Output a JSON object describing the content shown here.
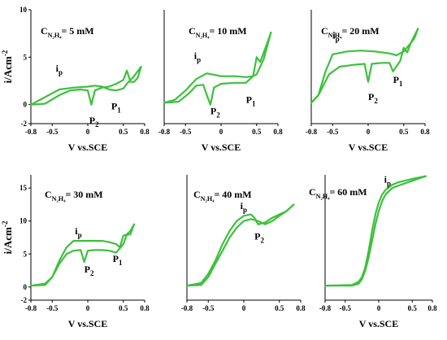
{
  "chart_data": [
    {
      "type": "line",
      "title": "C_{N2H4}= 5 mM",
      "title_main": "C",
      "title_sub": "N₂H₄",
      "title_rest": "= 5 mM",
      "xlabel": "V vs.SCE",
      "ylabel": "i/Acm",
      "ylabel_sup": "-2",
      "xlim": [
        -0.8,
        0.8
      ],
      "ylim": [
        -2,
        10
      ],
      "xticks": [
        "-0.8",
        "-0.5",
        "0",
        "0.5",
        "0.8"
      ],
      "yticks": [
        "10",
        "5",
        "0",
        "-2"
      ],
      "annotations": [
        {
          "text": "i",
          "sub": "p",
          "x": -0.45,
          "y": 3.5
        },
        {
          "text": "P",
          "sub": "2",
          "x": 0.02,
          "y": -2.0
        },
        {
          "text": "P",
          "sub": "1",
          "x": 0.33,
          "y": -0.5
        }
      ],
      "series": [
        {
          "x": [
            -0.8,
            -0.6,
            -0.4,
            -0.25,
            -0.1,
            0.0,
            0.05,
            0.1,
            0.2,
            0.3,
            0.4,
            0.5,
            0.55,
            0.6,
            0.65,
            0.7,
            0.75
          ],
          "y": [
            0.0,
            0.1,
            1.0,
            1.5,
            1.6,
            1.5,
            0.0,
            1.5,
            1.8,
            1.9,
            2.2,
            2.6,
            3.6,
            2.4,
            2.4,
            2.8,
            4.0
          ]
        },
        {
          "x": [
            0.75,
            0.65,
            0.55,
            0.5,
            0.4,
            0.3,
            0.2,
            0.1,
            0.0,
            -0.2,
            -0.4,
            -0.55,
            -0.8
          ],
          "y": [
            4.0,
            3.0,
            2.2,
            1.7,
            1.5,
            1.6,
            1.9,
            2.0,
            1.9,
            1.8,
            1.6,
            1.0,
            0.0
          ]
        }
      ]
    },
    {
      "type": "line",
      "title": "C_{N2H4}= 10 mM",
      "title_main": "C",
      "title_sub": "N₂H₄",
      "title_rest": "= 10 mM",
      "xlabel": "V vs.SCE",
      "ylabel": "",
      "xlim": [
        -0.8,
        0.8
      ],
      "ylim": [
        -2,
        10
      ],
      "xticks": [
        "-0.8",
        "-0.5",
        "0",
        "0.5",
        "0.8"
      ],
      "yticks": [],
      "annotations": [
        {
          "text": "i",
          "sub": "p",
          "x": -0.38,
          "y": 4.8
        },
        {
          "text": "P",
          "sub": "2",
          "x": -0.15,
          "y": -1.0
        },
        {
          "text": "P",
          "sub": "1",
          "x": 0.35,
          "y": 0.2
        }
      ],
      "series": [
        {
          "x": [
            -0.8,
            -0.6,
            -0.45,
            -0.35,
            -0.25,
            -0.2,
            -0.15,
            -0.1,
            0.0,
            0.2,
            0.35,
            0.45,
            0.5,
            0.55,
            0.6,
            0.65,
            0.7
          ],
          "y": [
            0.2,
            0.3,
            1.2,
            2.0,
            2.1,
            1.0,
            0.0,
            1.8,
            2.2,
            2.3,
            2.3,
            3.0,
            5.0,
            4.5,
            5.5,
            6.5,
            7.6
          ]
        },
        {
          "x": [
            0.7,
            0.6,
            0.5,
            0.45,
            0.35,
            0.2,
            0.0,
            -0.2,
            -0.35,
            -0.5,
            -0.65,
            -0.8
          ],
          "y": [
            7.6,
            4.8,
            3.2,
            3.0,
            2.9,
            3.0,
            3.0,
            3.3,
            2.7,
            1.5,
            0.5,
            0.2
          ]
        }
      ]
    },
    {
      "type": "line",
      "title": "C_{N2H4}= 20 mM",
      "title_main": "C",
      "title_sub": "N₂H₄",
      "title_rest": "= 20 mM",
      "xlabel": "V vs.SCE",
      "ylabel": "",
      "xlim": [
        -0.8,
        0.8
      ],
      "ylim": [
        -2,
        10
      ],
      "xticks": [
        "-0.8",
        "-0.5",
        "0",
        "0.5",
        "0.8"
      ],
      "yticks": [],
      "annotations": [
        {
          "text": "i",
          "sub": "p",
          "x": -0.5,
          "y": 7.0
        },
        {
          "text": "P",
          "sub": "2",
          "x": 0.0,
          "y": 0.5
        },
        {
          "text": "P",
          "sub": "1",
          "x": 0.35,
          "y": 2.3
        }
      ],
      "series": [
        {
          "x": [
            -0.8,
            -0.7,
            -0.55,
            -0.4,
            -0.2,
            -0.05,
            0.0,
            0.05,
            0.2,
            0.3,
            0.35,
            0.45,
            0.5,
            0.55,
            0.6,
            0.65,
            0.7
          ],
          "y": [
            0.2,
            1.0,
            3.2,
            4.0,
            4.2,
            4.3,
            2.4,
            4.3,
            4.4,
            4.4,
            3.5,
            4.6,
            6.0,
            5.5,
            6.5,
            7.0,
            8.0
          ]
        },
        {
          "x": [
            0.7,
            0.6,
            0.5,
            0.4,
            0.3,
            0.1,
            -0.1,
            -0.3,
            -0.5,
            -0.6,
            -0.7,
            -0.8
          ],
          "y": [
            8.0,
            6.5,
            5.6,
            5.2,
            5.4,
            5.6,
            5.7,
            5.6,
            5.3,
            3.5,
            1.0,
            0.2
          ]
        }
      ]
    },
    {
      "type": "line",
      "title": "C_{N2H4}= 30 mM",
      "title_main": "C",
      "title_sub": "N₂H₄",
      "title_rest": "= 30 mM",
      "xlabel": "V vs.SCE",
      "ylabel": "i/Acm",
      "ylabel_sup": "-2",
      "xlim": [
        -0.8,
        0.8
      ],
      "ylim": [
        -2,
        17
      ],
      "xticks": [
        "-0.8",
        "-0.5",
        "0",
        "0.5",
        "0.8"
      ],
      "yticks": [
        "15",
        "10",
        "5",
        "0",
        "-2"
      ],
      "annotations": [
        {
          "text": "i",
          "sub": "p",
          "x": -0.18,
          "y": 8.0
        },
        {
          "text": "P",
          "sub": "2",
          "x": -0.05,
          "y": 2.2
        },
        {
          "text": "P",
          "sub": "1",
          "x": 0.35,
          "y": 3.8
        }
      ],
      "series": [
        {
          "x": [
            -0.8,
            -0.6,
            -0.5,
            -0.4,
            -0.3,
            -0.2,
            -0.1,
            -0.05,
            0.0,
            0.1,
            0.2,
            0.3,
            0.4,
            0.5,
            0.55,
            0.6,
            0.65
          ],
          "y": [
            0.2,
            0.3,
            1.5,
            3.5,
            5.0,
            5.5,
            5.6,
            3.8,
            5.5,
            5.6,
            5.6,
            5.5,
            5.2,
            6.5,
            8.0,
            8.5,
            9.5
          ]
        },
        {
          "x": [
            0.65,
            0.6,
            0.5,
            0.45,
            0.4,
            0.3,
            0.2,
            0.0,
            -0.2,
            -0.3,
            -0.4,
            -0.5,
            -0.6,
            -0.8
          ],
          "y": [
            9.5,
            8.0,
            7.8,
            6.0,
            6.5,
            6.8,
            7.0,
            7.0,
            7.0,
            6.0,
            4.0,
            1.5,
            0.5,
            0.2
          ]
        }
      ]
    },
    {
      "type": "line",
      "title": "C_{N2H4}= 40 mM",
      "title_main": "C",
      "title_sub": "N₂H₄",
      "title_rest": "= 40 mM",
      "xlabel": "",
      "ylabel": "",
      "xlim": [
        -0.8,
        0.8
      ],
      "ylim": [
        -2,
        17
      ],
      "xticks": [
        "-0.8",
        "-0.5",
        "0",
        "0.5",
        "0.8"
      ],
      "yticks": [],
      "annotations": [
        {
          "text": "i",
          "sub": "p",
          "x": -0.05,
          "y": 11.8
        },
        {
          "text": "P",
          "sub": "2",
          "x": 0.15,
          "y": 7.2
        }
      ],
      "series": [
        {
          "x": [
            -0.8,
            -0.6,
            -0.5,
            -0.4,
            -0.3,
            -0.2,
            -0.1,
            0.0,
            0.1,
            0.2,
            0.3,
            0.4,
            0.5,
            0.6,
            0.65,
            0.7
          ],
          "y": [
            0.2,
            0.3,
            1.5,
            3.5,
            5.5,
            7.5,
            9.0,
            10.0,
            10.3,
            10.0,
            9.5,
            10.0,
            10.8,
            11.5,
            12.0,
            12.5
          ]
        },
        {
          "x": [
            0.7,
            0.6,
            0.5,
            0.4,
            0.3,
            0.2,
            0.15,
            0.1,
            0.0,
            -0.1,
            -0.2,
            -0.3,
            -0.4,
            -0.5,
            -0.6,
            -0.8
          ],
          "y": [
            12.5,
            11.5,
            11.0,
            10.5,
            9.8,
            9.5,
            10.5,
            11.0,
            10.8,
            10.0,
            8.5,
            6.5,
            4.0,
            2.0,
            0.6,
            0.2
          ]
        }
      ]
    },
    {
      "type": "line",
      "title": "C_{N2H4}= 60 mM",
      "title_main": "C",
      "title_sub": "N₂H₄",
      "title_rest": "= 60 mM",
      "xlabel": "V vs.SCE",
      "ylabel": "",
      "xlim": [
        -0.8,
        0.8
      ],
      "ylim": [
        -2,
        17
      ],
      "xticks": [
        "-0.8",
        "-0.5",
        "0",
        "0.5",
        "0.8"
      ],
      "yticks": [],
      "annotations": [
        {
          "text": "i",
          "sub": "p",
          "x": 0.08,
          "y": 15.8
        }
      ],
      "series": [
        {
          "x": [
            -0.8,
            -0.4,
            -0.3,
            -0.25,
            -0.2,
            -0.15,
            -0.1,
            -0.05,
            0.0,
            0.05,
            0.1,
            0.2,
            0.3,
            0.5,
            0.7
          ],
          "y": [
            0.2,
            0.3,
            0.8,
            1.5,
            3.0,
            5.5,
            8.5,
            11.0,
            12.8,
            14.0,
            14.7,
            15.5,
            15.9,
            16.4,
            16.8
          ]
        },
        {
          "x": [
            0.7,
            0.5,
            0.3,
            0.2,
            0.1,
            0.05,
            0.0,
            -0.05,
            -0.1,
            -0.15,
            -0.2,
            -0.25,
            -0.3,
            -0.4,
            -0.8
          ],
          "y": [
            16.8,
            16.1,
            15.4,
            15.0,
            14.0,
            13.0,
            11.5,
            9.5,
            7.0,
            4.5,
            2.5,
            1.2,
            0.5,
            0.2,
            0.2
          ]
        }
      ]
    }
  ],
  "style": {
    "curve_color": "#3cc13c"
  }
}
